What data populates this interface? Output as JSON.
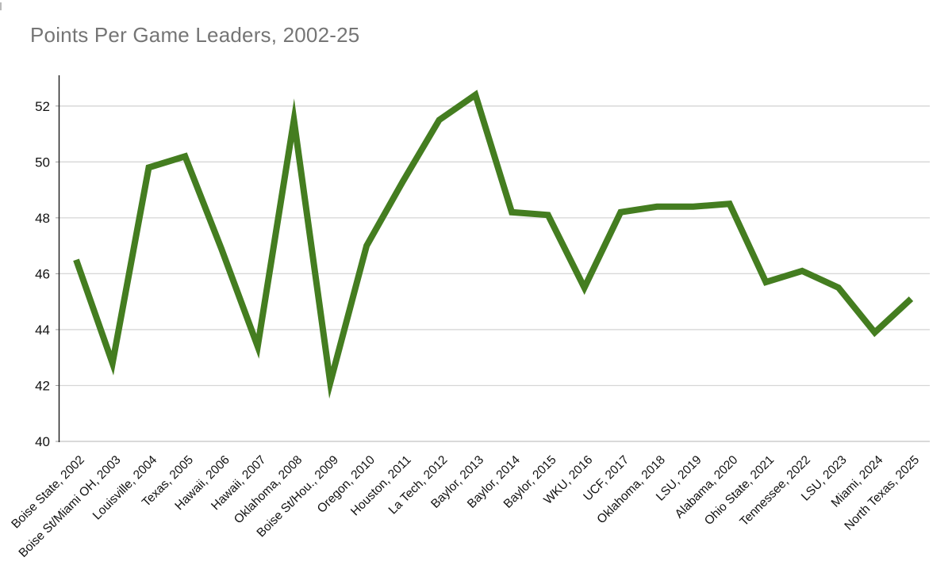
{
  "title": "Points Per Game Leaders, 2002-25",
  "chart_data": {
    "type": "line",
    "title": "Points Per Game Leaders, 2002-25",
    "categories": [
      "Boise State, 2002",
      "Boise St/Miami OH, 2003",
      "Louisville, 2004",
      "Texas, 2005",
      "Hawaii, 2006",
      "Hawaii, 2007",
      "Oklahoma, 2008",
      "Boise St/Hou., 2009",
      "Oregon, 2010",
      "Houston, 2011",
      "La Tech, 2012",
      "Baylor, 2013",
      "Baylor, 2014",
      "Baylor, 2015",
      "WKU, 2016",
      "UCF, 2017",
      "Oklahoma, 2018",
      "LSU, 2019",
      "Alabama, 2020",
      "Ohio State, 2021",
      "Tennessee, 2022",
      "LSU, 2023",
      "Miami, 2024",
      "North Texas, 2025"
    ],
    "values": [
      46.5,
      42.8,
      49.8,
      50.2,
      46.9,
      43.4,
      51.5,
      42.1,
      47.0,
      49.3,
      51.5,
      52.4,
      48.2,
      48.1,
      45.5,
      48.2,
      48.4,
      48.4,
      48.5,
      45.7,
      46.1,
      45.5,
      43.9,
      45.1
    ],
    "xlabel": "",
    "ylabel": "",
    "ylim": [
      40,
      53.1
    ],
    "yticks": [
      40,
      42,
      44,
      46,
      48,
      50,
      52
    ],
    "grid": "horizontal",
    "legend": "none",
    "style": {
      "line_color": "#447d20",
      "title_color": "#757575",
      "gridline_color": "#d6d6d6",
      "baseline_color": "#c2c2c2",
      "axis_color": "#1b1b1b",
      "label_color": "#111111"
    }
  }
}
